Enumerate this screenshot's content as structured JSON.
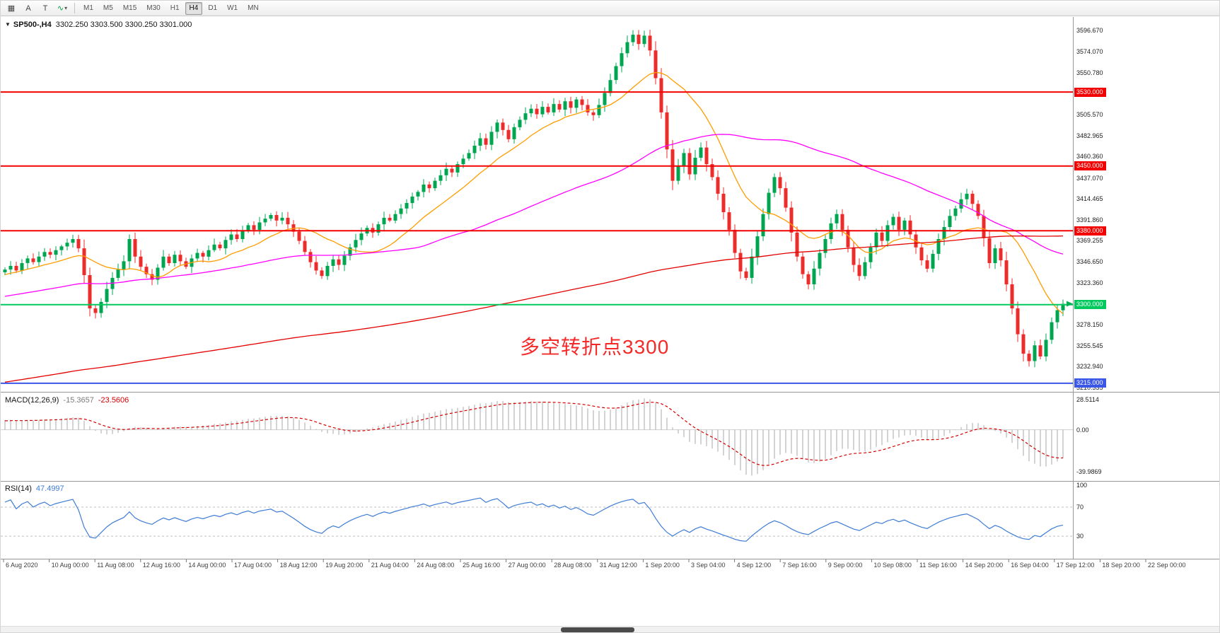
{
  "toolbar": {
    "tools": [
      {
        "name": "chart-list",
        "glyph": "▦"
      },
      {
        "name": "text-label",
        "glyph": "A"
      },
      {
        "name": "text-object",
        "glyph": "T"
      },
      {
        "name": "indicators",
        "glyph": "∿",
        "dropdown_glyph": "▾"
      }
    ],
    "timeframes": [
      "M1",
      "M5",
      "M15",
      "M30",
      "H1",
      "H4",
      "D1",
      "W1",
      "MN"
    ],
    "active_timeframe": "H4"
  },
  "chart_header": {
    "collapse_glyph": "▼",
    "title": "SP500-,H4",
    "ohlc": "3302.250 3303.500 3300.250 3301.000"
  },
  "annotation": {
    "text": "多空转折点3300",
    "color": "#f42a2a"
  },
  "indicators": {
    "macd": {
      "label": "MACD(12,26,9)",
      "main_value": "-15.3657",
      "signal_value": "-23.5606",
      "axis_labels": [
        "28.5114",
        "0.00",
        "-39.9869"
      ],
      "axis_values": [
        28.5114,
        0,
        -39.9869
      ]
    },
    "rsi": {
      "label": "RSI(14)",
      "value": "47.4997",
      "axis_labels": [
        "100",
        "70",
        "30"
      ],
      "axis_values": [
        100,
        70,
        30
      ],
      "levels": [
        70,
        30
      ]
    }
  },
  "chart_data": {
    "type": "candlestick",
    "symbol": "SP500-",
    "timeframe": "H4",
    "title": "SP500-,H4",
    "current_ohlc": {
      "open": 3302.25,
      "high": 3303.5,
      "low": 3300.25,
      "close": 3301.0
    },
    "price_ticks": [
      3596.67,
      3574.07,
      3550.78,
      3505.57,
      3482.965,
      3460.36,
      3437.07,
      3414.465,
      3391.86,
      3369.255,
      3346.65,
      3323.36,
      3278.15,
      3255.545,
      3232.94,
      3210.335
    ],
    "x_labels": [
      "6 Aug 2020",
      "10 Aug 00:00",
      "11 Aug 08:00",
      "12 Aug 16:00",
      "14 Aug 00:00",
      "17 Aug 04:00",
      "18 Aug 12:00",
      "19 Aug 20:00",
      "21 Aug 04:00",
      "24 Aug 08:00",
      "25 Aug 16:00",
      "27 Aug 00:00",
      "28 Aug 08:00",
      "31 Aug 12:00",
      "1 Sep 20:00",
      "3 Sep 04:00",
      "4 Sep 12:00",
      "7 Sep 16:00",
      "9 Sep 00:00",
      "10 Sep 08:00",
      "11 Sep 16:00",
      "14 Sep 20:00",
      "16 Sep 04:00",
      "17 Sep 12:00",
      "18 Sep 20:00",
      "22 Sep 00:00"
    ],
    "horizontal_lines": [
      {
        "price": 3530,
        "label": "3530.000",
        "color": "#f40000",
        "type": "resistance"
      },
      {
        "price": 3450,
        "label": "3450.000",
        "color": "#f40000",
        "type": "resistance"
      },
      {
        "price": 3380,
        "label": "3380.000",
        "color": "#f40000",
        "type": "resistance"
      },
      {
        "price": 3300,
        "label": "3300.000",
        "color": "#00c95e",
        "type": "pivot"
      },
      {
        "price": 3215,
        "label": "3215.000",
        "color": "#3a57e8",
        "type": "support"
      }
    ],
    "moving_averages": [
      {
        "period": 14,
        "color": "#ff9d00"
      },
      {
        "period": 60,
        "color": "#ff00ff"
      },
      {
        "period": 250,
        "color": "#e30000"
      }
    ],
    "candle_up_color": "#00a550",
    "candle_down_color": "#ed2b2b",
    "first_open": 3335,
    "closes": [
      3338,
      3342,
      3337,
      3345,
      3350,
      3346,
      3352,
      3357,
      3354,
      3359,
      3363,
      3367,
      3371,
      3361,
      3332,
      3296,
      3291,
      3303,
      3317,
      3329,
      3338,
      3347,
      3371,
      3352,
      3341,
      3333,
      3327,
      3340,
      3352,
      3345,
      3354,
      3347,
      3341,
      3350,
      3356,
      3352,
      3359,
      3365,
      3361,
      3370,
      3376,
      3371,
      3380,
      3386,
      3381,
      3389,
      3393,
      3397,
      3391,
      3394,
      3387,
      3379,
      3369,
      3357,
      3346,
      3337,
      3331,
      3342,
      3349,
      3343,
      3353,
      3362,
      3370,
      3377,
      3383,
      3378,
      3387,
      3394,
      3391,
      3398,
      3404,
      3410,
      3417,
      3422,
      3430,
      3426,
      3434,
      3440,
      3447,
      3443,
      3452,
      3458,
      3464,
      3472,
      3480,
      3473,
      3487,
      3497,
      3489,
      3479,
      3492,
      3500,
      3507,
      3512,
      3506,
      3514,
      3508,
      3517,
      3511,
      3520,
      3513,
      3522,
      3516,
      3508,
      3505,
      3516,
      3529,
      3543,
      3558,
      3572,
      3584,
      3592,
      3582,
      3591,
      3575,
      3545,
      3508,
      3468,
      3434,
      3450,
      3464,
      3441,
      3459,
      3470,
      3452,
      3438,
      3420,
      3400,
      3381,
      3356,
      3336,
      3329,
      3352,
      3374,
      3398,
      3421,
      3438,
      3426,
      3405,
      3378,
      3352,
      3333,
      3322,
      3339,
      3356,
      3371,
      3388,
      3398,
      3381,
      3362,
      3343,
      3331,
      3346,
      3362,
      3378,
      3369,
      3386,
      3395,
      3381,
      3391,
      3376,
      3362,
      3348,
      3339,
      3355,
      3371,
      3384,
      3396,
      3404,
      3414,
      3420,
      3409,
      3396,
      3372,
      3345,
      3361,
      3348,
      3322,
      3296,
      3268,
      3247,
      3239,
      3256,
      3244,
      3262,
      3281,
      3294,
      3301
    ],
    "macd_params": [
      12,
      26,
      9
    ],
    "rsi_period": 14
  }
}
